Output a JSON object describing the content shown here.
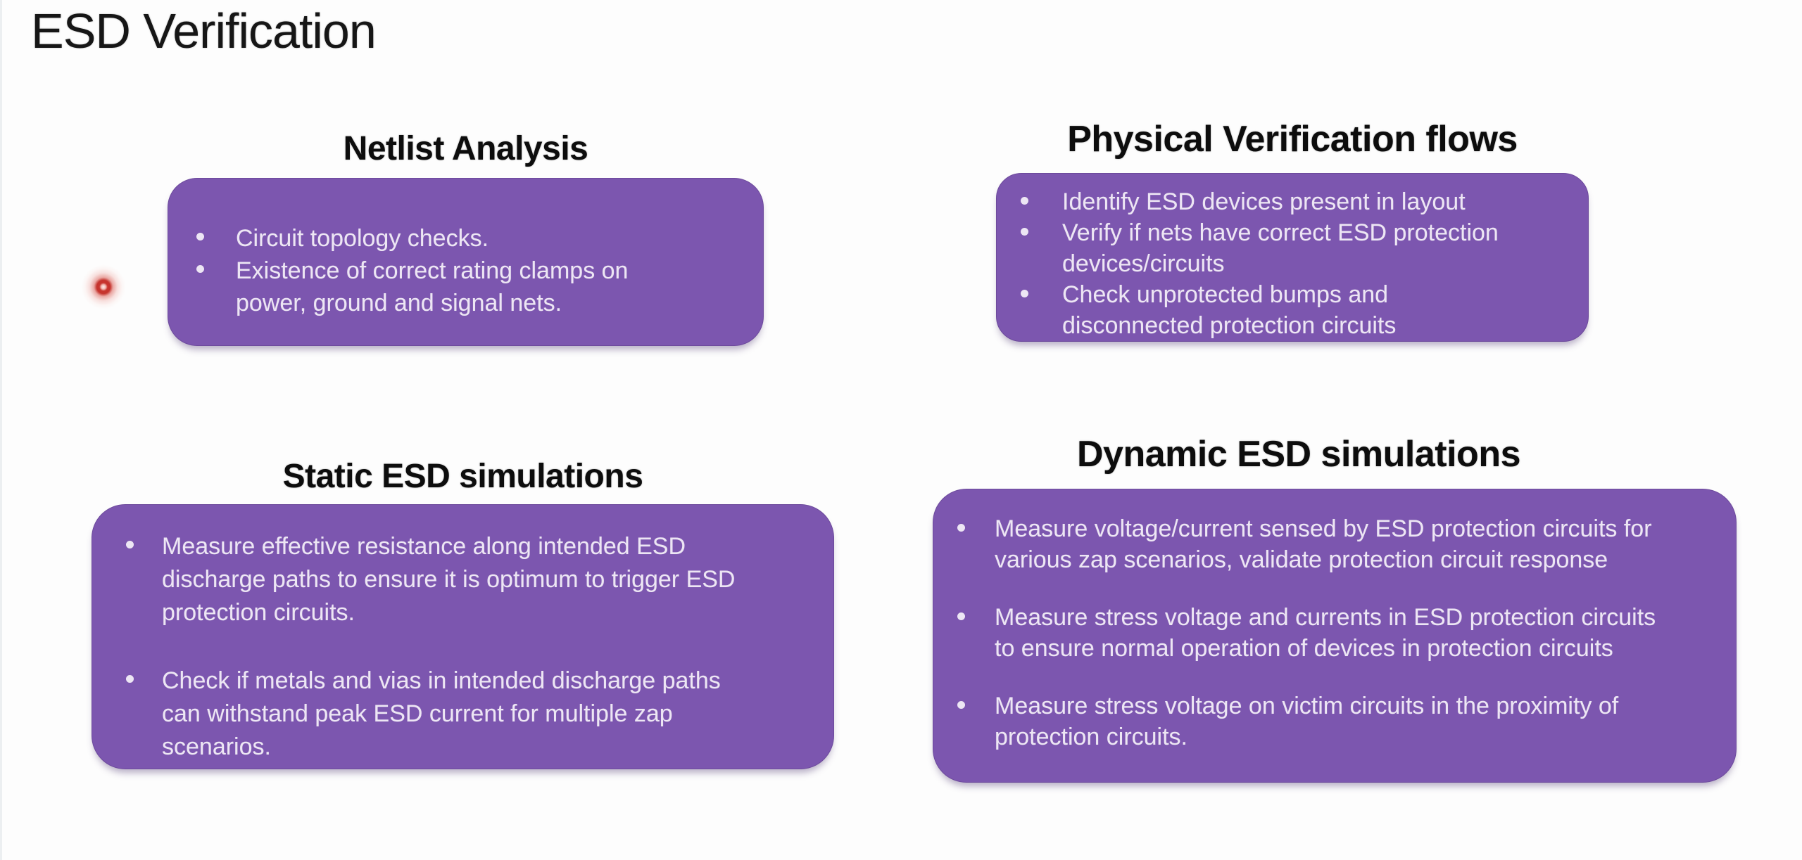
{
  "slide": {
    "title": "ESD Verification"
  },
  "colors": {
    "panel_bg": "#7C56AF",
    "panel_text": "#EDE6F4",
    "heading_text": "#0D0D0D",
    "laser_red": "#C8352E",
    "background": "#FDFDFD"
  },
  "icons": {
    "laser_pointer": "laser-pointer-dot"
  },
  "panels": [
    {
      "heading": "Netlist Analysis",
      "bullets": [
        "Circuit topology checks.",
        "Existence of correct rating clamps on\npower, ground and signal nets."
      ]
    },
    {
      "heading": "Physical Verification flows",
      "bullets": [
        "Identify ESD devices present in layout",
        "Verify if nets have correct ESD protection\ndevices/circuits",
        "Check unprotected bumps and\ndisconnected protection circuits"
      ]
    },
    {
      "heading": "Static ESD simulations",
      "bullets": [
        "Measure effective resistance along intended ESD\ndischarge paths to ensure it is optimum to trigger ESD\nprotection circuits.",
        "Check if metals and vias in intended discharge paths\ncan withstand peak ESD current for multiple zap\nscenarios."
      ]
    },
    {
      "heading": "Dynamic ESD simulations",
      "bullets": [
        "Measure voltage/current sensed by ESD protection circuits for\nvarious zap scenarios, validate protection circuit response",
        "Measure stress voltage and currents in ESD protection circuits\nto ensure normal operation of devices in protection circuits",
        "Measure stress voltage on victim circuits in the proximity of\nprotection circuits."
      ]
    }
  ]
}
